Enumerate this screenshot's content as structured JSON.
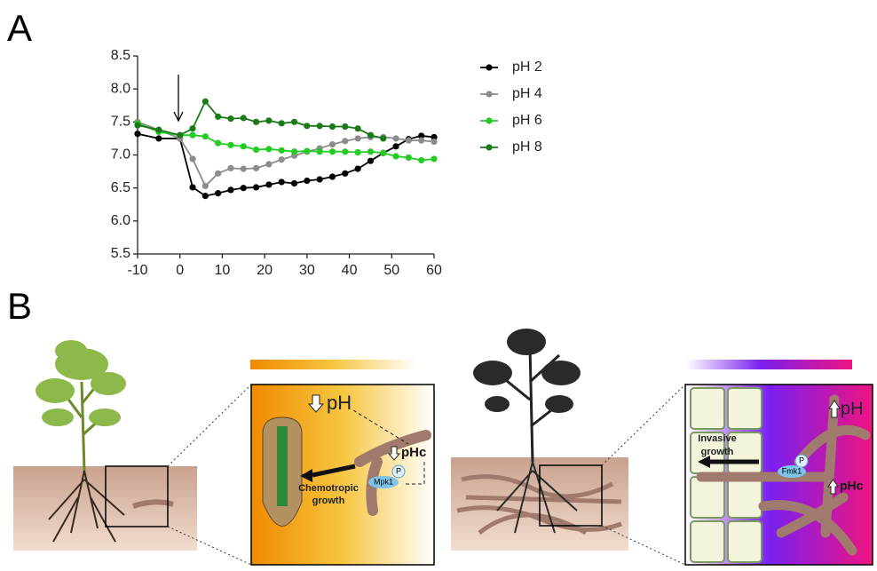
{
  "panels": {
    "a": "A",
    "b": "B"
  },
  "chart_data": {
    "type": "line",
    "x": [
      -10,
      -5,
      0,
      3,
      6,
      9,
      12,
      15,
      18,
      21,
      24,
      27,
      30,
      33,
      36,
      39,
      42,
      45,
      48,
      51,
      54,
      57,
      60
    ],
    "series": [
      {
        "name": "pH 2",
        "color": "#000000",
        "values": [
          7.32,
          7.25,
          7.25,
          6.51,
          6.38,
          6.42,
          6.47,
          6.5,
          6.51,
          6.55,
          6.59,
          6.57,
          6.61,
          6.63,
          6.67,
          6.72,
          6.79,
          6.91,
          7.03,
          7.13,
          7.24,
          7.29,
          7.27
        ]
      },
      {
        "name": "pH 4",
        "color": "#8c8c8c",
        "values": [
          7.5,
          7.38,
          7.25,
          6.94,
          6.53,
          6.72,
          6.8,
          6.79,
          6.8,
          6.86,
          6.93,
          6.99,
          7.05,
          7.1,
          7.16,
          7.21,
          7.25,
          7.27,
          7.27,
          7.25,
          7.22,
          7.22,
          7.2
        ]
      },
      {
        "name": "pH 6",
        "color": "#22cc22",
        "values": [
          7.48,
          7.35,
          7.3,
          7.3,
          7.28,
          7.18,
          7.15,
          7.13,
          7.08,
          7.09,
          7.07,
          7.05,
          7.06,
          7.05,
          7.05,
          7.05,
          7.04,
          7.05,
          7.03,
          6.98,
          6.96,
          6.92,
          6.94
        ]
      },
      {
        "name": "pH 8",
        "color": "#1a7a1a",
        "values": [
          7.45,
          7.38,
          7.3,
          7.4,
          7.81,
          7.58,
          7.55,
          7.56,
          7.5,
          7.52,
          7.48,
          7.5,
          7.44,
          7.44,
          7.43,
          7.43,
          7.4,
          7.3,
          7.25,
          null,
          null,
          null,
          null
        ]
      }
    ],
    "xlim": [
      -10,
      60
    ],
    "xticks": [
      -10,
      0,
      10,
      20,
      30,
      40,
      50,
      60
    ],
    "ylim": [
      5.5,
      8.5
    ],
    "yticks": [
      5.5,
      {
        "value": 6,
        "label": "6.0"
      },
      6.5,
      {
        "value": 7,
        "label": "7.0"
      },
      7.5,
      {
        "value": 8,
        "label": "8.0"
      },
      8.5
    ]
  },
  "illustration": {
    "left": {
      "ph": "pH",
      "phc": "pHc",
      "kinase": "Mpk1",
      "phospho": "P",
      "growth": [
        "Chemotropic",
        "growth"
      ]
    },
    "right": {
      "ph": "pH",
      "phc": "pHc",
      "kinase": "Fmk1",
      "phospho": "P",
      "growth": [
        "Invasive",
        "growth"
      ]
    }
  }
}
